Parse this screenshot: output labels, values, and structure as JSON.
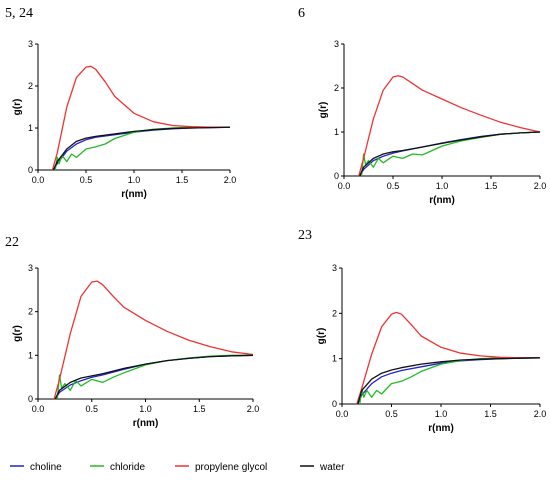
{
  "chart_data": [
    {
      "type": "line",
      "title": "5, 24",
      "xlabel": "r(nm)",
      "ylabel": "g(r)",
      "xlim": [
        0,
        2
      ],
      "ylim": [
        0,
        3
      ],
      "xticks": [
        "0.0",
        "0.5",
        "1.0",
        "1.5",
        "2.0"
      ],
      "yticks": [
        "0",
        "1",
        "2",
        "3"
      ],
      "series": [
        {
          "name": "choline",
          "x": [
            0.16,
            0.2,
            0.3,
            0.4,
            0.5,
            0.6,
            0.8,
            1.0,
            1.2,
            1.4,
            1.6,
            1.8,
            2.0
          ],
          "y": [
            0,
            0.15,
            0.45,
            0.62,
            0.72,
            0.78,
            0.84,
            0.9,
            0.95,
            0.98,
            1.0,
            1.01,
            1.02
          ]
        },
        {
          "name": "chloride",
          "x": [
            0.18,
            0.2,
            0.22,
            0.25,
            0.3,
            0.35,
            0.4,
            0.5,
            0.6,
            0.7,
            0.8,
            1.0,
            1.2,
            1.4,
            1.6,
            1.8,
            2.0
          ],
          "y": [
            0,
            0.3,
            0.15,
            0.35,
            0.2,
            0.38,
            0.3,
            0.5,
            0.55,
            0.62,
            0.75,
            0.9,
            0.97,
            1.0,
            1.02,
            1.02,
            1.02
          ]
        },
        {
          "name": "propylene glycol",
          "x": [
            0.15,
            0.2,
            0.3,
            0.4,
            0.5,
            0.55,
            0.6,
            0.7,
            0.8,
            1.0,
            1.2,
            1.4,
            1.6,
            1.8,
            2.0
          ],
          "y": [
            0,
            0.4,
            1.5,
            2.2,
            2.45,
            2.47,
            2.4,
            2.1,
            1.75,
            1.35,
            1.15,
            1.06,
            1.03,
            1.02,
            1.02
          ]
        },
        {
          "name": "water",
          "x": [
            0.16,
            0.2,
            0.3,
            0.4,
            0.5,
            0.6,
            0.8,
            1.0,
            1.2,
            1.4,
            1.6,
            1.8,
            2.0
          ],
          "y": [
            0,
            0.2,
            0.5,
            0.68,
            0.76,
            0.8,
            0.86,
            0.92,
            0.96,
            0.99,
            1.0,
            1.01,
            1.02
          ]
        }
      ]
    },
    {
      "type": "line",
      "title": "6",
      "xlabel": "r(nm)",
      "ylabel": "g(r)",
      "xlim": [
        0,
        2
      ],
      "ylim": [
        0,
        3
      ],
      "xticks": [
        "0.0",
        "0.5",
        "1.0",
        "1.5",
        "2.0"
      ],
      "yticks": [
        "0",
        "1",
        "2",
        "3"
      ],
      "series": [
        {
          "name": "choline",
          "x": [
            0.16,
            0.2,
            0.3,
            0.4,
            0.5,
            0.6,
            0.8,
            1.0,
            1.2,
            1.4,
            1.6,
            1.8,
            2.0
          ],
          "y": [
            0,
            0.15,
            0.35,
            0.45,
            0.52,
            0.57,
            0.66,
            0.75,
            0.83,
            0.9,
            0.95,
            0.98,
            1.0
          ]
        },
        {
          "name": "chloride",
          "x": [
            0.18,
            0.2,
            0.22,
            0.25,
            0.3,
            0.35,
            0.4,
            0.5,
            0.6,
            0.7,
            0.8,
            1.0,
            1.2,
            1.4,
            1.6,
            1.8,
            2.0
          ],
          "y": [
            0,
            0.5,
            0.25,
            0.35,
            0.2,
            0.4,
            0.3,
            0.45,
            0.4,
            0.5,
            0.48,
            0.68,
            0.8,
            0.88,
            0.95,
            0.98,
            1.0
          ]
        },
        {
          "name": "propylene glycol",
          "x": [
            0.15,
            0.2,
            0.3,
            0.4,
            0.5,
            0.55,
            0.6,
            0.7,
            0.8,
            1.0,
            1.2,
            1.4,
            1.6,
            1.8,
            2.0
          ],
          "y": [
            0,
            0.4,
            1.3,
            1.95,
            2.25,
            2.28,
            2.25,
            2.1,
            1.95,
            1.75,
            1.55,
            1.38,
            1.22,
            1.1,
            1.0
          ]
        },
        {
          "name": "water",
          "x": [
            0.16,
            0.2,
            0.3,
            0.4,
            0.5,
            0.6,
            0.8,
            1.0,
            1.2,
            1.4,
            1.6,
            1.8,
            2.0
          ],
          "y": [
            0,
            0.2,
            0.4,
            0.5,
            0.55,
            0.58,
            0.66,
            0.74,
            0.82,
            0.89,
            0.95,
            0.98,
            1.0
          ]
        }
      ]
    },
    {
      "type": "line",
      "title": "22",
      "xlabel": "r(nm)",
      "ylabel": "g(r)",
      "xlim": [
        0,
        2
      ],
      "ylim": [
        0,
        3
      ],
      "xticks": [
        "0.0",
        "0.5",
        "1.0",
        "1.5",
        "2.0"
      ],
      "yticks": [
        "0",
        "1",
        "2",
        "3"
      ],
      "series": [
        {
          "name": "choline",
          "x": [
            0.16,
            0.2,
            0.3,
            0.4,
            0.5,
            0.6,
            0.8,
            1.0,
            1.2,
            1.4,
            1.6,
            1.8,
            2.0
          ],
          "y": [
            0,
            0.15,
            0.32,
            0.42,
            0.5,
            0.55,
            0.68,
            0.8,
            0.88,
            0.93,
            0.97,
            0.99,
            1.0
          ]
        },
        {
          "name": "chloride",
          "x": [
            0.18,
            0.2,
            0.22,
            0.25,
            0.3,
            0.35,
            0.4,
            0.5,
            0.6,
            0.7,
            0.8,
            1.0,
            1.2,
            1.4,
            1.6,
            1.8,
            2.0
          ],
          "y": [
            0,
            0.55,
            0.25,
            0.35,
            0.2,
            0.42,
            0.3,
            0.45,
            0.38,
            0.5,
            0.6,
            0.78,
            0.88,
            0.94,
            0.98,
            1.0,
            1.0
          ]
        },
        {
          "name": "propylene glycol",
          "x": [
            0.15,
            0.2,
            0.3,
            0.4,
            0.5,
            0.55,
            0.6,
            0.7,
            0.8,
            1.0,
            1.2,
            1.4,
            1.6,
            1.8,
            2.0
          ],
          "y": [
            0,
            0.45,
            1.5,
            2.35,
            2.68,
            2.7,
            2.62,
            2.35,
            2.1,
            1.8,
            1.55,
            1.35,
            1.2,
            1.08,
            1.02
          ]
        },
        {
          "name": "water",
          "x": [
            0.16,
            0.2,
            0.3,
            0.4,
            0.5,
            0.6,
            0.8,
            1.0,
            1.2,
            1.4,
            1.6,
            1.8,
            2.0
          ],
          "y": [
            0,
            0.2,
            0.38,
            0.48,
            0.53,
            0.58,
            0.7,
            0.8,
            0.88,
            0.93,
            0.97,
            0.99,
            1.0
          ]
        }
      ]
    },
    {
      "type": "line",
      "title": "23",
      "xlabel": "r(nm)",
      "ylabel": "g(r)",
      "xlim": [
        0,
        2
      ],
      "ylim": [
        0,
        3
      ],
      "xticks": [
        "0.0",
        "0.5",
        "1.0",
        "1.5",
        "2.0"
      ],
      "yticks": [
        "0",
        "1",
        "2",
        "3"
      ],
      "series": [
        {
          "name": "choline",
          "x": [
            0.16,
            0.2,
            0.3,
            0.4,
            0.5,
            0.6,
            0.8,
            1.0,
            1.2,
            1.4,
            1.6,
            1.8,
            2.0
          ],
          "y": [
            0,
            0.2,
            0.45,
            0.6,
            0.68,
            0.74,
            0.82,
            0.9,
            0.95,
            0.98,
            1.0,
            1.01,
            1.02
          ]
        },
        {
          "name": "chloride",
          "x": [
            0.18,
            0.2,
            0.22,
            0.25,
            0.3,
            0.35,
            0.4,
            0.5,
            0.6,
            0.7,
            0.8,
            1.0,
            1.2,
            1.4,
            1.6,
            1.8,
            2.0
          ],
          "y": [
            0,
            0.35,
            0.15,
            0.3,
            0.15,
            0.3,
            0.22,
            0.45,
            0.5,
            0.6,
            0.72,
            0.88,
            0.96,
            1.0,
            1.02,
            1.02,
            1.02
          ]
        },
        {
          "name": "propylene glycol",
          "x": [
            0.15,
            0.2,
            0.3,
            0.4,
            0.5,
            0.55,
            0.6,
            0.7,
            0.8,
            1.0,
            1.2,
            1.4,
            1.6,
            1.8,
            2.0
          ],
          "y": [
            0,
            0.35,
            1.1,
            1.7,
            1.98,
            2.02,
            1.98,
            1.75,
            1.5,
            1.25,
            1.12,
            1.06,
            1.03,
            1.02,
            1.02
          ]
        },
        {
          "name": "water",
          "x": [
            0.16,
            0.2,
            0.3,
            0.4,
            0.5,
            0.6,
            0.8,
            1.0,
            1.2,
            1.4,
            1.6,
            1.8,
            2.0
          ],
          "y": [
            0,
            0.3,
            0.55,
            0.68,
            0.75,
            0.8,
            0.88,
            0.93,
            0.97,
            0.99,
            1.0,
            1.01,
            1.02
          ]
        }
      ]
    }
  ],
  "legend": {
    "items": [
      {
        "name": "choline",
        "color": "#2222cc"
      },
      {
        "name": "chloride",
        "color": "#22bb22"
      },
      {
        "name": "propylene glycol",
        "color": "#ee3333"
      },
      {
        "name": "water",
        "color": "#111111"
      }
    ]
  }
}
